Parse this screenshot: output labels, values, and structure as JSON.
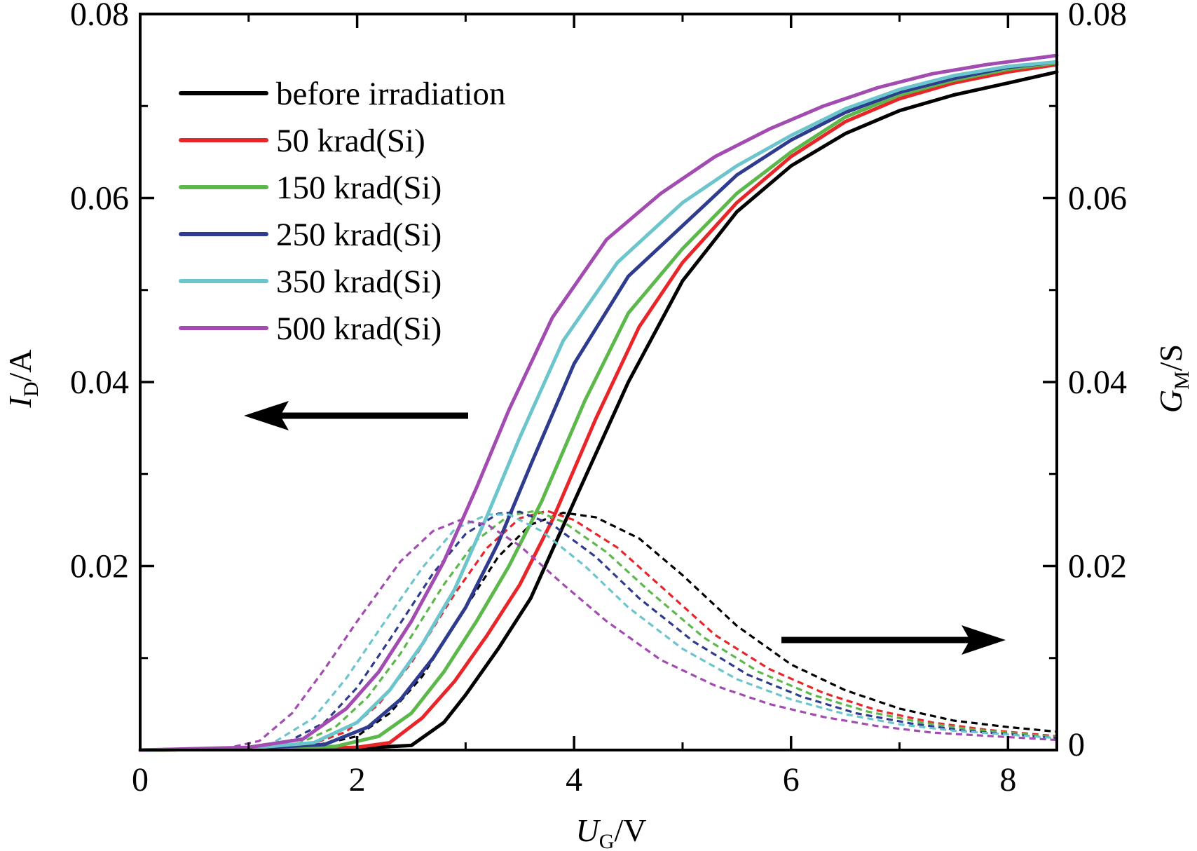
{
  "chart_data": {
    "type": "line",
    "xlabel": {
      "main": "U",
      "sub": "G",
      "unit": "/V"
    },
    "ylabel_left": {
      "main": "I",
      "sub": "D",
      "unit": "/A"
    },
    "ylabel_right": {
      "main": "G",
      "sub": "M",
      "unit": "/S"
    },
    "xlim": [
      0,
      8.45
    ],
    "ylim_left": [
      0,
      0.08
    ],
    "ylim_right": [
      0,
      0.08
    ],
    "x_ticks": [
      "0",
      "2",
      "4",
      "6",
      "8"
    ],
    "y_ticks_left": [
      "0.02",
      "0.04",
      "0.06",
      "0.08"
    ],
    "y_ticks_right": [
      "0",
      "0.02",
      "0.04",
      "0.06",
      "0.08"
    ],
    "grid": false,
    "legend_position": "top-left",
    "arrows": [
      {
        "points_to": "left axis",
        "direction": "left"
      },
      {
        "points_to": "right axis",
        "direction": "right"
      }
    ],
    "series": [
      {
        "name": "before irradiation",
        "color": "#000000",
        "id": [
          [
            0,
            0
          ],
          [
            1,
            0.0001
          ],
          [
            2,
            0.0002
          ],
          [
            2.5,
            0.0005
          ],
          [
            2.8,
            0.003
          ],
          [
            3.0,
            0.006
          ],
          [
            3.3,
            0.011
          ],
          [
            3.6,
            0.0165
          ],
          [
            4.0,
            0.027
          ],
          [
            4.5,
            0.04
          ],
          [
            5.0,
            0.051
          ],
          [
            5.5,
            0.0585
          ],
          [
            6.0,
            0.0635
          ],
          [
            6.5,
            0.067
          ],
          [
            7.0,
            0.0695
          ],
          [
            7.5,
            0.0712
          ],
          [
            8.0,
            0.0725
          ],
          [
            8.45,
            0.0737
          ]
        ],
        "gm": [
          [
            0,
            0
          ],
          [
            1,
            0
          ],
          [
            1.5,
            0.0002
          ],
          [
            2.0,
            0.0015
          ],
          [
            2.3,
            0.004
          ],
          [
            2.6,
            0.008
          ],
          [
            3.0,
            0.0155
          ],
          [
            3.3,
            0.021
          ],
          [
            3.6,
            0.0245
          ],
          [
            3.9,
            0.0258
          ],
          [
            4.2,
            0.0253
          ],
          [
            4.6,
            0.023
          ],
          [
            5.0,
            0.019
          ],
          [
            5.5,
            0.0135
          ],
          [
            6.0,
            0.0093
          ],
          [
            6.5,
            0.0065
          ],
          [
            7.0,
            0.0045
          ],
          [
            7.5,
            0.0032
          ],
          [
            8.0,
            0.0025
          ],
          [
            8.45,
            0.002
          ]
        ]
      },
      {
        "name": "50 krad(Si)",
        "color": "#e8262a",
        "id": [
          [
            0,
            0
          ],
          [
            1,
            0.0001
          ],
          [
            2,
            0.0003
          ],
          [
            2.3,
            0.0008
          ],
          [
            2.6,
            0.0035
          ],
          [
            2.9,
            0.0075
          ],
          [
            3.2,
            0.0125
          ],
          [
            3.5,
            0.018
          ],
          [
            3.8,
            0.025
          ],
          [
            4.2,
            0.036
          ],
          [
            4.6,
            0.046
          ],
          [
            5.0,
            0.053
          ],
          [
            5.5,
            0.0595
          ],
          [
            6.0,
            0.0645
          ],
          [
            6.5,
            0.0683
          ],
          [
            7.0,
            0.0708
          ],
          [
            7.5,
            0.0725
          ],
          [
            8.0,
            0.0737
          ],
          [
            8.45,
            0.0745
          ]
        ],
        "gm": [
          [
            0,
            0
          ],
          [
            1,
            0
          ],
          [
            1.5,
            0.0003
          ],
          [
            1.9,
            0.002
          ],
          [
            2.2,
            0.005
          ],
          [
            2.5,
            0.0095
          ],
          [
            2.9,
            0.017
          ],
          [
            3.2,
            0.022
          ],
          [
            3.5,
            0.0252
          ],
          [
            3.75,
            0.026
          ],
          [
            4.0,
            0.025
          ],
          [
            4.4,
            0.022
          ],
          [
            4.8,
            0.0178
          ],
          [
            5.3,
            0.0125
          ],
          [
            5.8,
            0.0088
          ],
          [
            6.3,
            0.0062
          ],
          [
            6.8,
            0.0043
          ],
          [
            7.3,
            0.003
          ],
          [
            7.8,
            0.0022
          ],
          [
            8.45,
            0.0015
          ]
        ]
      },
      {
        "name": "150 krad(Si)",
        "color": "#5db84b",
        "id": [
          [
            0,
            0
          ],
          [
            1,
            0.0001
          ],
          [
            1.8,
            0.0004
          ],
          [
            2.2,
            0.0015
          ],
          [
            2.5,
            0.004
          ],
          [
            2.8,
            0.0085
          ],
          [
            3.1,
            0.014
          ],
          [
            3.4,
            0.02
          ],
          [
            3.7,
            0.027
          ],
          [
            4.1,
            0.038
          ],
          [
            4.5,
            0.0475
          ],
          [
            5.0,
            0.0545
          ],
          [
            5.5,
            0.0605
          ],
          [
            6.0,
            0.065
          ],
          [
            6.5,
            0.0688
          ],
          [
            7.0,
            0.0712
          ],
          [
            7.5,
            0.0728
          ],
          [
            8.0,
            0.074
          ],
          [
            8.45,
            0.0747
          ]
        ],
        "gm": [
          [
            0,
            0
          ],
          [
            1,
            0
          ],
          [
            1.4,
            0.0004
          ],
          [
            1.8,
            0.0025
          ],
          [
            2.1,
            0.0058
          ],
          [
            2.4,
            0.0105
          ],
          [
            2.8,
            0.018
          ],
          [
            3.1,
            0.0228
          ],
          [
            3.4,
            0.0255
          ],
          [
            3.65,
            0.026
          ],
          [
            3.9,
            0.0248
          ],
          [
            4.3,
            0.0215
          ],
          [
            4.7,
            0.0172
          ],
          [
            5.2,
            0.0122
          ],
          [
            5.7,
            0.0085
          ],
          [
            6.2,
            0.006
          ],
          [
            6.7,
            0.0042
          ],
          [
            7.2,
            0.003
          ],
          [
            7.7,
            0.0022
          ],
          [
            8.45,
            0.0014
          ]
        ]
      },
      {
        "name": "250 krad(Si)",
        "color": "#2e3b8f",
        "id": [
          [
            0,
            0
          ],
          [
            1,
            0.0002
          ],
          [
            1.7,
            0.0006
          ],
          [
            2.1,
            0.0025
          ],
          [
            2.4,
            0.0055
          ],
          [
            2.7,
            0.01
          ],
          [
            3.0,
            0.0155
          ],
          [
            3.3,
            0.0225
          ],
          [
            3.6,
            0.031
          ],
          [
            4.0,
            0.042
          ],
          [
            4.5,
            0.0515
          ],
          [
            5.0,
            0.057
          ],
          [
            5.5,
            0.0625
          ],
          [
            6.0,
            0.0663
          ],
          [
            6.5,
            0.0693
          ],
          [
            7.0,
            0.0715
          ],
          [
            7.5,
            0.073
          ],
          [
            8.0,
            0.0742
          ],
          [
            8.45,
            0.0748
          ]
        ],
        "gm": [
          [
            0,
            0
          ],
          [
            1,
            0.0001
          ],
          [
            1.3,
            0.0005
          ],
          [
            1.7,
            0.003
          ],
          [
            2.0,
            0.0068
          ],
          [
            2.3,
            0.012
          ],
          [
            2.7,
            0.0192
          ],
          [
            3.0,
            0.0235
          ],
          [
            3.3,
            0.0257
          ],
          [
            3.5,
            0.0259
          ],
          [
            3.8,
            0.0245
          ],
          [
            4.2,
            0.021
          ],
          [
            4.6,
            0.0165
          ],
          [
            5.1,
            0.0118
          ],
          [
            5.6,
            0.0082
          ],
          [
            6.1,
            0.0058
          ],
          [
            6.6,
            0.004
          ],
          [
            7.1,
            0.0029
          ],
          [
            7.6,
            0.0021
          ],
          [
            8.45,
            0.0013
          ]
        ]
      },
      {
        "name": "350 krad(Si)",
        "color": "#6cc5cc",
        "id": [
          [
            0,
            0
          ],
          [
            1,
            0.0002
          ],
          [
            1.6,
            0.0008
          ],
          [
            2.0,
            0.003
          ],
          [
            2.3,
            0.0065
          ],
          [
            2.6,
            0.0115
          ],
          [
            2.9,
            0.0175
          ],
          [
            3.2,
            0.0255
          ],
          [
            3.5,
            0.034
          ],
          [
            3.9,
            0.0445
          ],
          [
            4.4,
            0.053
          ],
          [
            5.0,
            0.0595
          ],
          [
            5.5,
            0.0635
          ],
          [
            6.0,
            0.0668
          ],
          [
            6.5,
            0.0697
          ],
          [
            7.0,
            0.0718
          ],
          [
            7.5,
            0.0733
          ],
          [
            8.0,
            0.0743
          ],
          [
            8.45,
            0.0748
          ]
        ],
        "gm": [
          [
            0,
            0
          ],
          [
            0.9,
            0.0001
          ],
          [
            1.2,
            0.0006
          ],
          [
            1.6,
            0.0035
          ],
          [
            1.9,
            0.0078
          ],
          [
            2.2,
            0.013
          ],
          [
            2.6,
            0.0198
          ],
          [
            2.9,
            0.024
          ],
          [
            3.2,
            0.0256
          ],
          [
            3.4,
            0.0256
          ],
          [
            3.7,
            0.0238
          ],
          [
            4.1,
            0.02
          ],
          [
            4.5,
            0.0155
          ],
          [
            5.0,
            0.011
          ],
          [
            5.5,
            0.0077
          ],
          [
            6.0,
            0.0055
          ],
          [
            6.5,
            0.0039
          ],
          [
            7.0,
            0.0028
          ],
          [
            7.5,
            0.0021
          ],
          [
            8.45,
            0.0013
          ]
        ]
      },
      {
        "name": "500 krad(Si)",
        "color": "#a24bb0",
        "id": [
          [
            0,
            0
          ],
          [
            1,
            0.0003
          ],
          [
            1.5,
            0.0012
          ],
          [
            1.9,
            0.0045
          ],
          [
            2.2,
            0.0085
          ],
          [
            2.5,
            0.014
          ],
          [
            2.8,
            0.0205
          ],
          [
            3.1,
            0.0285
          ],
          [
            3.4,
            0.037
          ],
          [
            3.8,
            0.047
          ],
          [
            4.3,
            0.0555
          ],
          [
            4.8,
            0.0605
          ],
          [
            5.3,
            0.0645
          ],
          [
            5.8,
            0.0675
          ],
          [
            6.3,
            0.07
          ],
          [
            6.8,
            0.072
          ],
          [
            7.3,
            0.0735
          ],
          [
            7.8,
            0.0745
          ],
          [
            8.45,
            0.0755
          ]
        ],
        "gm": [
          [
            0,
            0
          ],
          [
            0.8,
            0.0002
          ],
          [
            1.1,
            0.001
          ],
          [
            1.4,
            0.004
          ],
          [
            1.7,
            0.0088
          ],
          [
            2.0,
            0.014
          ],
          [
            2.4,
            0.0205
          ],
          [
            2.7,
            0.0238
          ],
          [
            2.95,
            0.025
          ],
          [
            3.2,
            0.0245
          ],
          [
            3.5,
            0.0222
          ],
          [
            3.9,
            0.018
          ],
          [
            4.3,
            0.014
          ],
          [
            4.8,
            0.0098
          ],
          [
            5.3,
            0.007
          ],
          [
            5.8,
            0.005
          ],
          [
            6.3,
            0.0036
          ],
          [
            6.8,
            0.0026
          ],
          [
            7.3,
            0.0019
          ],
          [
            8.45,
            0.0011
          ]
        ]
      }
    ]
  }
}
